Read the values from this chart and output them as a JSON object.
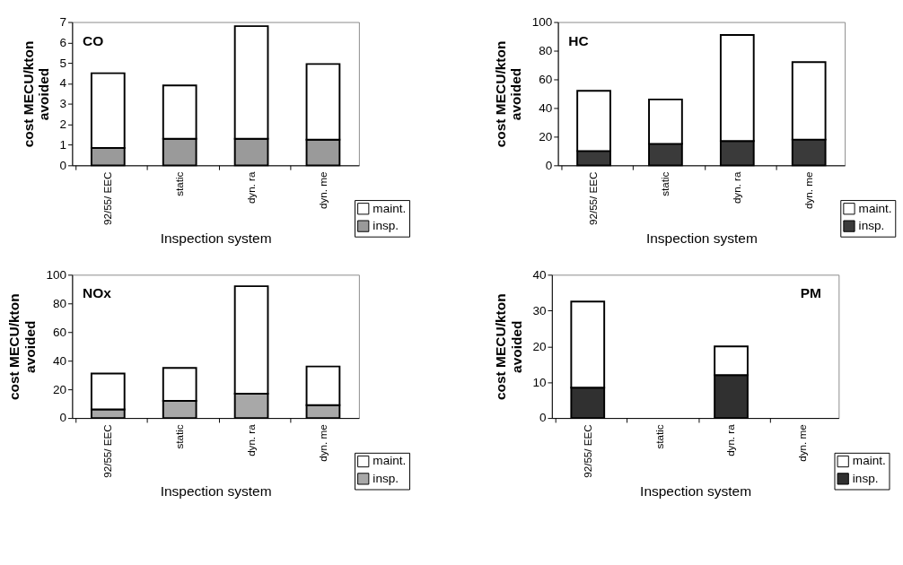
{
  "chart_data": [
    {
      "type": "bar",
      "title": "CO",
      "xlabel": "Inspection system",
      "ylabel": "cost MECU/kton avoided",
      "categories": [
        "92/55/ EEC",
        "static",
        "dyn. ra",
        "dyn. me"
      ],
      "stacked": true,
      "ylim": [
        0,
        7
      ],
      "yticks": [
        0,
        1,
        2,
        3,
        4,
        5,
        6,
        7
      ],
      "legend": "bottom right",
      "series": [
        {
          "name": "insp.",
          "color": "#9a9a9a",
          "values": [
            0.85,
            1.3,
            1.3,
            1.25
          ]
        },
        {
          "name": "maint.",
          "color": "#ffffff",
          "values": [
            3.65,
            2.6,
            5.5,
            3.7
          ]
        }
      ]
    },
    {
      "type": "bar",
      "title": "HC",
      "xlabel": "Inspection system",
      "ylabel": "cost MECU/kton avoided",
      "categories": [
        "92/55/ EEC",
        "static",
        "dyn. ra",
        "dyn. me"
      ],
      "stacked": true,
      "ylim": [
        0,
        100
      ],
      "yticks": [
        0,
        20,
        40,
        60,
        80,
        100
      ],
      "legend": "bottom right",
      "series": [
        {
          "name": "insp.",
          "color": "#3a3a3a",
          "values": [
            10,
            15,
            17,
            18
          ]
        },
        {
          "name": "maint.",
          "color": "#ffffff",
          "values": [
            42,
            31,
            74,
            54
          ]
        }
      ]
    },
    {
      "type": "bar",
      "title": "NOx",
      "xlabel": "Inspection system",
      "ylabel": "cost MECU/kton avoided",
      "categories": [
        "92/55/ EEC",
        "static",
        "dyn. ra",
        "dyn. me"
      ],
      "stacked": true,
      "ylim": [
        0,
        100
      ],
      "yticks": [
        0,
        20,
        40,
        60,
        80,
        100
      ],
      "legend": "bottom right",
      "series": [
        {
          "name": "insp.",
          "color": "#a8a8a8",
          "values": [
            6,
            12,
            17,
            9
          ]
        },
        {
          "name": "maint.",
          "color": "#ffffff",
          "values": [
            25,
            23,
            75,
            27
          ]
        }
      ]
    },
    {
      "type": "bar",
      "title": "PM",
      "xlabel": "Inspection system",
      "ylabel": "cost MECU/kton avoided",
      "categories": [
        "92/55/ EEC",
        "static",
        "dyn. ra",
        "dyn. me"
      ],
      "stacked": true,
      "ylim": [
        0,
        40
      ],
      "yticks": [
        0,
        10,
        20,
        30,
        40
      ],
      "legend": "bottom right",
      "series": [
        {
          "name": "insp.",
          "color": "#303030",
          "values": [
            8.5,
            null,
            12,
            null
          ]
        },
        {
          "name": "maint.",
          "color": "#ffffff",
          "values": [
            24,
            null,
            8,
            null
          ]
        }
      ]
    }
  ]
}
